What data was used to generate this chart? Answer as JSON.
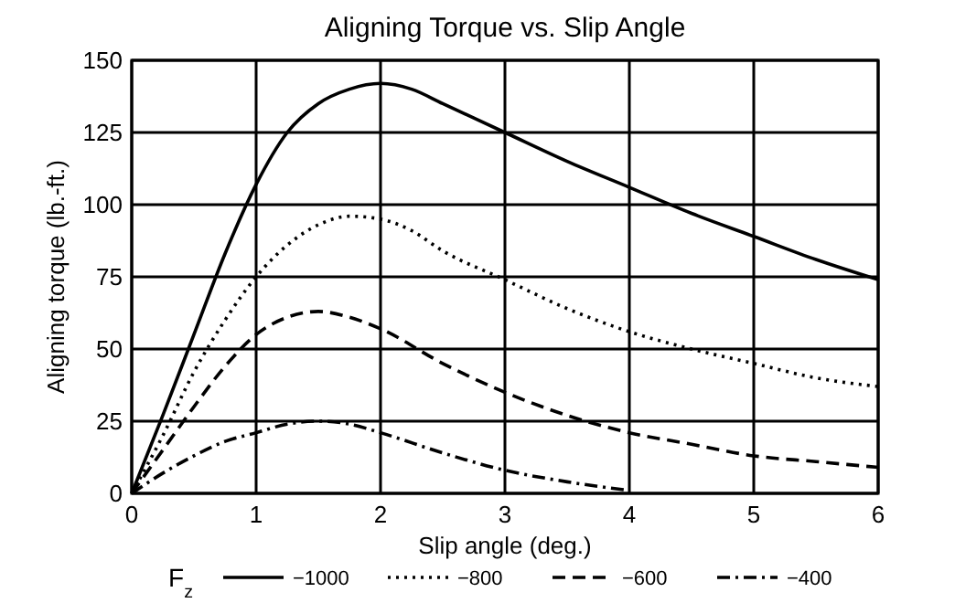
{
  "chart_data": {
    "type": "line",
    "title": "Aligning Torque vs. Slip Angle",
    "xlabel": "Slip angle (deg.)",
    "ylabel": "Aligning torque (lb.-ft.)",
    "legend_title": "F$_{z}$",
    "xlim": [
      0,
      6
    ],
    "xticks": [
      0,
      1,
      2,
      3,
      4,
      5,
      6
    ],
    "ylim": [
      0,
      150
    ],
    "yticks": [
      0,
      25,
      50,
      75,
      100,
      125,
      150
    ],
    "grid": true,
    "legend": "bottom",
    "series": [
      {
        "name": "−1000",
        "color": "#000000",
        "line_style": "solid",
        "x": [
          0,
          0.25,
          0.5,
          0.75,
          1,
          1.25,
          1.5,
          1.75,
          2,
          2.25,
          2.5,
          3,
          3.5,
          4,
          4.5,
          5,
          5.5,
          6
        ],
        "values": [
          0,
          27,
          55,
          83,
          107,
          125,
          135,
          140,
          142,
          140,
          135,
          125,
          115,
          106,
          97,
          89,
          81,
          74
        ]
      },
      {
        "name": "−800",
        "color": "#000000",
        "line_style": "dotted",
        "x": [
          0,
          0.25,
          0.5,
          0.75,
          1,
          1.25,
          1.5,
          1.75,
          2,
          2.25,
          2.5,
          3,
          3.5,
          4,
          4.5,
          5,
          5.5,
          6
        ],
        "values": [
          0,
          20,
          42,
          60,
          75,
          86,
          93,
          96,
          95,
          91,
          84,
          74,
          64,
          56,
          50,
          45,
          40,
          37
        ]
      },
      {
        "name": "−600",
        "color": "#000000",
        "line_style": "dashed",
        "x": [
          0,
          0.25,
          0.5,
          0.75,
          1,
          1.25,
          1.5,
          1.75,
          2,
          2.5,
          3,
          3.5,
          4,
          4.5,
          5,
          5.5,
          6
        ],
        "values": [
          0,
          15,
          30,
          44,
          55,
          61,
          63,
          61,
          57,
          45,
          35,
          27,
          21,
          17,
          13,
          11,
          9
        ]
      },
      {
        "name": "−400",
        "color": "#000000",
        "line_style": "dashdot",
        "x": [
          0,
          0.25,
          0.5,
          0.75,
          1,
          1.25,
          1.5,
          1.75,
          2,
          2.5,
          3,
          3.5,
          4
        ],
        "values": [
          0,
          7,
          13,
          18,
          21,
          24,
          25,
          24,
          21,
          14,
          8,
          4,
          1
        ]
      }
    ]
  }
}
